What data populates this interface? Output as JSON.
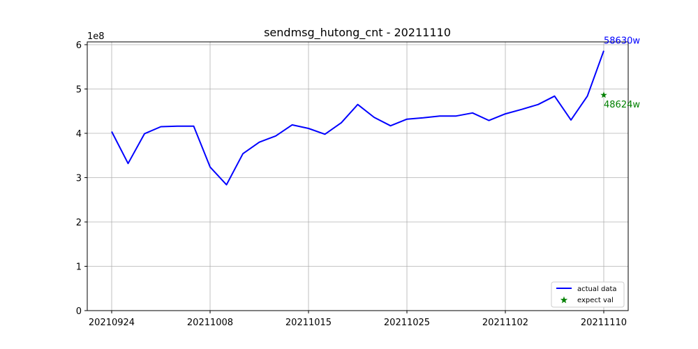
{
  "chart_data": {
    "type": "line",
    "title": "sendmsg_hutong_cnt - 20211110",
    "xlabel": "",
    "ylabel": "",
    "y_scale_label": "1e8",
    "ylim": [
      0,
      6.0
    ],
    "yticks": [
      "0",
      "1",
      "2",
      "3",
      "4",
      "5",
      "6"
    ],
    "xticks": [
      "20210924",
      "20211008",
      "20211015",
      "20211025",
      "20211102",
      "20211110"
    ],
    "grid": true,
    "legend_position": "lower-right",
    "series": [
      {
        "name": "actual data",
        "color": "#0000ff",
        "values": [
          4.04,
          3.32,
          3.99,
          4.15,
          4.16,
          4.16,
          3.24,
          2.84,
          3.54,
          3.8,
          3.94,
          4.19,
          4.11,
          3.98,
          4.24,
          4.65,
          4.36,
          4.17,
          4.32,
          4.35,
          4.39,
          4.39,
          4.46,
          4.29,
          4.44,
          4.54,
          4.65,
          4.84,
          4.3,
          4.84,
          5.863
        ]
      },
      {
        "name": "expect val",
        "color": "#008000",
        "marker": "star",
        "point": {
          "index": 30,
          "value": 4.8624
        }
      }
    ],
    "annotations": [
      {
        "text": "58630w",
        "color": "#0000ff"
      },
      {
        "text": "48624w",
        "color": "#008000"
      }
    ]
  }
}
